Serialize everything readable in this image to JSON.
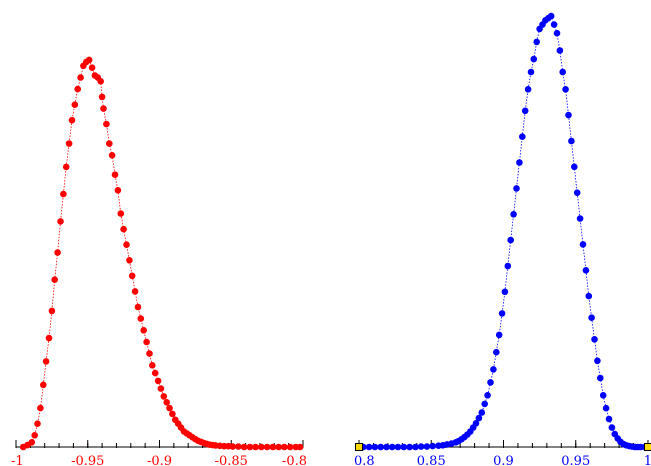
{
  "chart_data": [
    {
      "type": "scatter",
      "title": "",
      "xlabel": "",
      "ylabel": "",
      "xlim": [
        -1.0,
        -0.8
      ],
      "ylim": [
        0,
        1
      ],
      "color": "#ff0000",
      "grid": false,
      "x_ticks": [
        {
          "value": -1.0,
          "label": "-1"
        },
        {
          "value": -0.95,
          "label": "-0.95"
        },
        {
          "value": -0.9,
          "label": "-0.9"
        },
        {
          "value": -0.85,
          "label": "-0.85"
        },
        {
          "value": -0.8,
          "label": "-0.8"
        }
      ],
      "minor_tick_step": 0.01,
      "series": [
        {
          "x": [
            -0.995,
            -0.992,
            -0.989,
            -0.987,
            -0.985,
            -0.983,
            -0.981,
            -0.979,
            -0.977,
            -0.975,
            -0.973,
            -0.971,
            -0.969,
            -0.967,
            -0.965,
            -0.963,
            -0.961,
            -0.959,
            -0.957,
            -0.955,
            -0.953,
            -0.951,
            -0.949,
            -0.947,
            -0.945,
            -0.943,
            -0.941,
            -0.94,
            -0.939,
            -0.937,
            -0.935,
            -0.933,
            -0.931,
            -0.929,
            -0.927,
            -0.925,
            -0.923,
            -0.921,
            -0.919,
            -0.917,
            -0.915,
            -0.913,
            -0.911,
            -0.909,
            -0.907,
            -0.905,
            -0.903,
            -0.901,
            -0.899,
            -0.897,
            -0.895,
            -0.893,
            -0.891,
            -0.889,
            -0.887,
            -0.885,
            -0.883,
            -0.881,
            -0.879,
            -0.877,
            -0.875,
            -0.873,
            -0.871,
            -0.869,
            -0.867,
            -0.865,
            -0.863,
            -0.861,
            -0.858,
            -0.855,
            -0.852,
            -0.849,
            -0.845,
            -0.841,
            -0.837,
            -0.833,
            -0.829,
            -0.825,
            -0.821,
            -0.817,
            -0.813,
            -0.809,
            -0.805,
            -0.802
          ],
          "y": [
            0.0,
            0.005,
            0.012,
            0.03,
            0.06,
            0.1,
            0.16,
            0.22,
            0.28,
            0.35,
            0.43,
            0.5,
            0.58,
            0.65,
            0.72,
            0.78,
            0.84,
            0.88,
            0.92,
            0.95,
            0.98,
            0.99,
            0.995,
            0.975,
            0.955,
            0.95,
            0.94,
            0.9,
            0.87,
            0.83,
            0.78,
            0.75,
            0.7,
            0.66,
            0.6,
            0.56,
            0.52,
            0.48,
            0.44,
            0.4,
            0.36,
            0.33,
            0.3,
            0.27,
            0.24,
            0.21,
            0.19,
            0.17,
            0.15,
            0.13,
            0.115,
            0.1,
            0.085,
            0.07,
            0.06,
            0.05,
            0.04,
            0.035,
            0.03,
            0.025,
            0.02,
            0.016,
            0.013,
            0.01,
            0.008,
            0.006,
            0.005,
            0.004,
            0.003,
            0.002,
            0.002,
            0.001,
            0.001,
            0.0,
            0.0,
            0.0,
            0.0,
            0.0,
            0.0,
            0.0,
            0.0,
            0.0,
            0.0,
            0.0
          ]
        }
      ]
    },
    {
      "type": "scatter",
      "title": "",
      "xlabel": "",
      "ylabel": "",
      "xlim": [
        0.8,
        1.0
      ],
      "ylim": [
        0,
        1
      ],
      "color": "#0000ff",
      "grid": false,
      "x_ticks": [
        {
          "value": 0.8,
          "label": "0.8"
        },
        {
          "value": 0.85,
          "label": "0.85"
        },
        {
          "value": 0.9,
          "label": "0.9"
        },
        {
          "value": 0.95,
          "label": "0.95"
        },
        {
          "value": 1.0,
          "label": "1"
        }
      ],
      "minor_tick_step": 0.01,
      "endpoint_marker_color": "#ffd700",
      "series": [
        {
          "x": [
            0.8,
            0.803,
            0.807,
            0.811,
            0.815,
            0.819,
            0.823,
            0.827,
            0.831,
            0.835,
            0.839,
            0.843,
            0.847,
            0.851,
            0.855,
            0.858,
            0.861,
            0.864,
            0.867,
            0.869,
            0.871,
            0.873,
            0.875,
            0.877,
            0.879,
            0.881,
            0.883,
            0.885,
            0.887,
            0.889,
            0.891,
            0.893,
            0.895,
            0.897,
            0.899,
            0.901,
            0.903,
            0.905,
            0.907,
            0.909,
            0.911,
            0.913,
            0.915,
            0.917,
            0.919,
            0.921,
            0.923,
            0.925,
            0.927,
            0.929,
            0.931,
            0.933,
            0.935,
            0.937,
            0.939,
            0.941,
            0.943,
            0.945,
            0.947,
            0.949,
            0.951,
            0.953,
            0.955,
            0.957,
            0.959,
            0.961,
            0.963,
            0.965,
            0.967,
            0.969,
            0.971,
            0.973,
            0.975,
            0.977,
            0.979,
            0.981,
            0.983,
            0.985,
            0.987,
            0.989,
            0.991,
            0.993,
            0.995,
            0.998,
            1.0
          ],
          "y": [
            0.0,
            0.0,
            0.0,
            0.0,
            0.0,
            0.0,
            0.0,
            0.0,
            0.0,
            0.0,
            0.0,
            0.001,
            0.001,
            0.002,
            0.003,
            0.004,
            0.006,
            0.008,
            0.011,
            0.014,
            0.018,
            0.023,
            0.029,
            0.036,
            0.045,
            0.055,
            0.067,
            0.08,
            0.1,
            0.12,
            0.15,
            0.18,
            0.22,
            0.26,
            0.31,
            0.36,
            0.42,
            0.48,
            0.54,
            0.6,
            0.66,
            0.72,
            0.78,
            0.83,
            0.87,
            0.9,
            0.94,
            0.97,
            0.98,
            0.99,
            0.995,
            1.0,
            0.98,
            0.96,
            0.92,
            0.87,
            0.83,
            0.77,
            0.71,
            0.65,
            0.59,
            0.53,
            0.47,
            0.41,
            0.35,
            0.3,
            0.25,
            0.2,
            0.16,
            0.12,
            0.09,
            0.065,
            0.045,
            0.03,
            0.02,
            0.012,
            0.007,
            0.004,
            0.002,
            0.001,
            0.0,
            0.0,
            0.0,
            0.0,
            0.0
          ]
        }
      ]
    }
  ]
}
